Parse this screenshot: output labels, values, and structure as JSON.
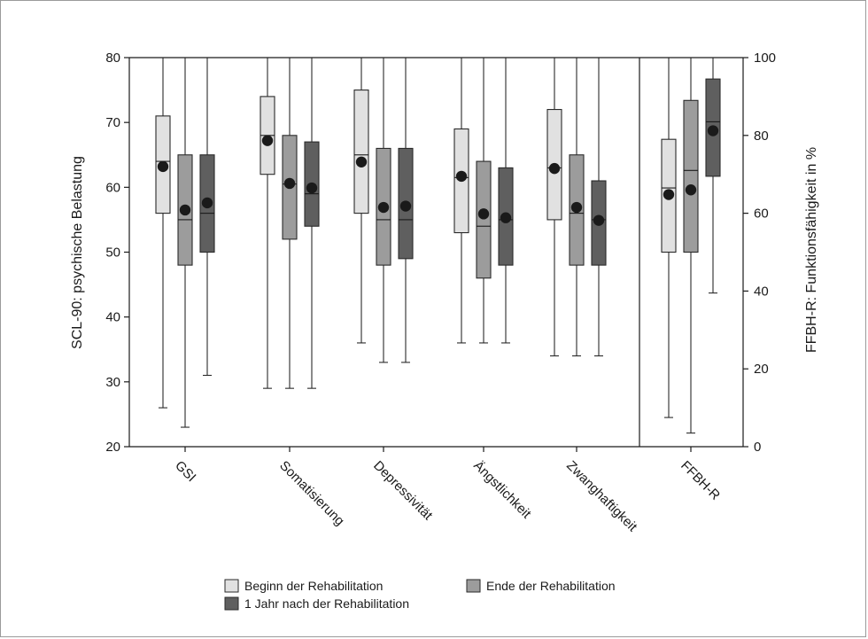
{
  "chart_data": {
    "type": "boxplot",
    "categories": [
      "GSI",
      "Somatisierung",
      "Depressivität",
      "Ängstlichkeit",
      "Zwanghaftigkeit",
      "FFBH-R"
    ],
    "y_left": {
      "label": "SCL-90: psychische Belastung",
      "range": [
        20,
        80
      ],
      "ticks": [
        20,
        30,
        40,
        50,
        60,
        70,
        80
      ]
    },
    "y_right": {
      "label": "FFBH-R: Funktionsfähigkeit in %",
      "range": [
        0,
        100
      ],
      "ticks": [
        0,
        20,
        40,
        60,
        80,
        100
      ],
      "applies_to": "FFBH-R"
    },
    "legend": {
      "placement": "bottom",
      "items": [
        "Beginn der Rehabilitation",
        "Ende der Rehabilitation",
        "1 Jahr nach der Rehabilitation"
      ]
    },
    "colors": {
      "series1": "#e1e1e1",
      "series2": "#9c9c9c",
      "series3": "#5f5f5f",
      "mean_marker": "#1a1a1a"
    },
    "grid": false,
    "series": [
      {
        "name": "Beginn der Rehabilitation",
        "boxes": [
          {
            "min": 26,
            "q1": 56,
            "median": 64,
            "q3": 71,
            "max": 80,
            "mean": 63.2
          },
          {
            "min": 29,
            "q1": 62,
            "median": 68,
            "q3": 74,
            "max": 80,
            "mean": 67.2
          },
          {
            "min": 36,
            "q1": 56,
            "median": 65,
            "q3": 75,
            "max": 80,
            "mean": 63.9
          },
          {
            "min": 36,
            "q1": 53,
            "median": 61.5,
            "q3": 69,
            "max": 80,
            "mean": 61.7
          },
          {
            "min": 34,
            "q1": 55,
            "median": 63,
            "q3": 72,
            "max": 80,
            "mean": 62.9
          },
          {
            "min": 7.5,
            "q1": 50,
            "median": 66.5,
            "q3": 79,
            "max": 100,
            "mean": 64.8
          }
        ]
      },
      {
        "name": "Ende der Rehabilitation",
        "boxes": [
          {
            "min": 23,
            "q1": 48,
            "median": 55,
            "q3": 65,
            "max": 80,
            "mean": 56.5
          },
          {
            "min": 29,
            "q1": 52,
            "median": 60.5,
            "q3": 68,
            "max": 80,
            "mean": 60.6
          },
          {
            "min": 33,
            "q1": 48,
            "median": 55,
            "q3": 66,
            "max": 80,
            "mean": 56.9
          },
          {
            "min": 36,
            "q1": 46,
            "median": 54,
            "q3": 64,
            "max": 80,
            "mean": 55.9
          },
          {
            "min": 34,
            "q1": 48,
            "median": 56,
            "q3": 65,
            "max": 80,
            "mean": 56.9
          },
          {
            "min": 3.5,
            "q1": 50,
            "median": 71,
            "q3": 89,
            "max": 100,
            "mean": 66
          }
        ]
      },
      {
        "name": "1 Jahr nach der Rehabilitation",
        "boxes": [
          {
            "min": 31,
            "q1": 50,
            "median": 56,
            "q3": 65,
            "max": 80,
            "mean": 57.6
          },
          {
            "min": 29,
            "q1": 54,
            "median": 59,
            "q3": 67,
            "max": 80,
            "mean": 59.9
          },
          {
            "min": 33,
            "q1": 49,
            "median": 55,
            "q3": 66,
            "max": 80,
            "mean": 57.1
          },
          {
            "min": 36,
            "q1": 48,
            "median": 55,
            "q3": 63,
            "max": 80,
            "mean": 55.3
          },
          {
            "min": 34,
            "q1": 48,
            "median": 55,
            "q3": 61,
            "max": 80,
            "mean": 54.9
          },
          {
            "min": 39.5,
            "q1": 69.5,
            "median": 83.5,
            "q3": 94.5,
            "max": 100,
            "mean": 81.2
          }
        ]
      }
    ]
  }
}
